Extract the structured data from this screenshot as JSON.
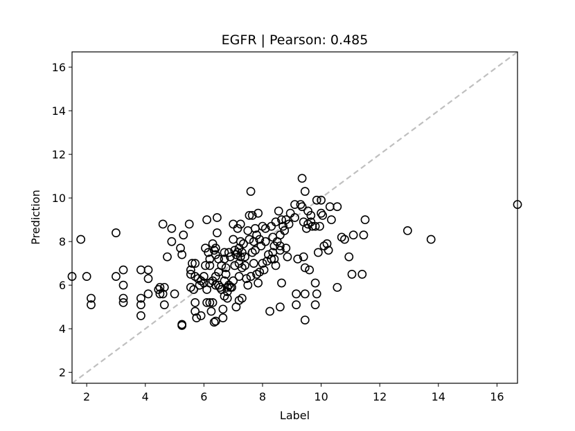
{
  "chart_data": {
    "type": "scatter",
    "title": "EGFR  |  Pearson: 0.485",
    "xlabel": "Label",
    "ylabel": "Prediction",
    "xlim": [
      1.5,
      16.7
    ],
    "ylim": [
      1.5,
      16.7
    ],
    "xticks": [
      2,
      4,
      6,
      8,
      10,
      12,
      14,
      16
    ],
    "yticks": [
      2,
      4,
      6,
      8,
      10,
      12,
      14,
      16
    ],
    "grid": false,
    "legend": "none",
    "reference_line": {
      "type": "identity",
      "style": "dashed",
      "color": "#bfbfbf"
    },
    "marker": {
      "shape": "circle",
      "fill": "none",
      "stroke": "#000000"
    },
    "points": [
      [
        1.5,
        6.4
      ],
      [
        1.8,
        8.1
      ],
      [
        2.0,
        6.4
      ],
      [
        2.15,
        5.4
      ],
      [
        2.15,
        5.1
      ],
      [
        3.0,
        8.4
      ],
      [
        3.0,
        6.4
      ],
      [
        3.25,
        6.7
      ],
      [
        3.25,
        6.0
      ],
      [
        3.25,
        5.4
      ],
      [
        3.25,
        5.2
      ],
      [
        3.85,
        6.7
      ],
      [
        3.85,
        5.4
      ],
      [
        3.85,
        5.1
      ],
      [
        3.85,
        4.6
      ],
      [
        4.1,
        6.7
      ],
      [
        4.1,
        6.3
      ],
      [
        4.1,
        5.6
      ],
      [
        4.45,
        5.8
      ],
      [
        4.5,
        5.9
      ],
      [
        4.5,
        5.6
      ],
      [
        4.6,
        5.6
      ],
      [
        4.6,
        8.8
      ],
      [
        4.65,
        5.9
      ],
      [
        4.65,
        5.1
      ],
      [
        4.75,
        7.3
      ],
      [
        4.9,
        8.6
      ],
      [
        4.9,
        8.0
      ],
      [
        5.0,
        5.6
      ],
      [
        5.2,
        7.7
      ],
      [
        5.25,
        7.4
      ],
      [
        5.25,
        4.2
      ],
      [
        5.25,
        4.15
      ],
      [
        5.3,
        8.3
      ],
      [
        5.5,
        8.8
      ],
      [
        5.55,
        6.7
      ],
      [
        5.55,
        6.5
      ],
      [
        5.55,
        5.9
      ],
      [
        5.6,
        7.0
      ],
      [
        5.65,
        5.8
      ],
      [
        5.7,
        7.0
      ],
      [
        5.7,
        6.4
      ],
      [
        5.7,
        5.2
      ],
      [
        5.7,
        4.8
      ],
      [
        5.75,
        4.5
      ],
      [
        5.8,
        6.3
      ],
      [
        5.85,
        6.0
      ],
      [
        5.9,
        6.2
      ],
      [
        5.9,
        4.6
      ],
      [
        6.0,
        6.4
      ],
      [
        6.0,
        6.1
      ],
      [
        6.05,
        7.7
      ],
      [
        6.05,
        6.9
      ],
      [
        6.1,
        5.2
      ],
      [
        6.1,
        5.8
      ],
      [
        6.1,
        9.0
      ],
      [
        6.15,
        7.5
      ],
      [
        6.2,
        7.2
      ],
      [
        6.2,
        6.9
      ],
      [
        6.2,
        6.1
      ],
      [
        6.2,
        5.2
      ],
      [
        6.25,
        4.8
      ],
      [
        6.3,
        5.2
      ],
      [
        6.3,
        6.2
      ],
      [
        6.3,
        7.9
      ],
      [
        6.35,
        7.6
      ],
      [
        6.35,
        4.3
      ],
      [
        6.4,
        7.4
      ],
      [
        6.4,
        7.7
      ],
      [
        6.4,
        6.4
      ],
      [
        6.4,
        6.0
      ],
      [
        6.4,
        4.35
      ],
      [
        6.45,
        8.4
      ],
      [
        6.45,
        9.1
      ],
      [
        6.5,
        7.2
      ],
      [
        6.5,
        6.6
      ],
      [
        6.5,
        6.0
      ],
      [
        6.55,
        5.9
      ],
      [
        6.6,
        5.8
      ],
      [
        6.6,
        6.9
      ],
      [
        6.65,
        4.5
      ],
      [
        6.65,
        4.9
      ],
      [
        6.7,
        5.5
      ],
      [
        6.7,
        6.2
      ],
      [
        6.7,
        7.5
      ],
      [
        6.7,
        7.2
      ],
      [
        6.75,
        6.8
      ],
      [
        6.75,
        6.5
      ],
      [
        6.8,
        5.9
      ],
      [
        6.8,
        5.7
      ],
      [
        6.8,
        5.4
      ],
      [
        6.85,
        6.0
      ],
      [
        6.85,
        7.5
      ],
      [
        6.9,
        5.9
      ],
      [
        6.9,
        7.3
      ],
      [
        6.95,
        5.9
      ],
      [
        7.0,
        8.1
      ],
      [
        7.0,
        8.8
      ],
      [
        7.0,
        6.2
      ],
      [
        7.05,
        7.6
      ],
      [
        7.05,
        6.9
      ],
      [
        7.1,
        5.0
      ],
      [
        7.1,
        7.4
      ],
      [
        7.15,
        8.6
      ],
      [
        7.15,
        7.5
      ],
      [
        7.2,
        7.7
      ],
      [
        7.2,
        7.0
      ],
      [
        7.2,
        6.4
      ],
      [
        7.2,
        5.3
      ],
      [
        7.25,
        8.8
      ],
      [
        7.25,
        8.0
      ],
      [
        7.25,
        7.3
      ],
      [
        7.3,
        7.5
      ],
      [
        7.3,
        6.8
      ],
      [
        7.3,
        5.4
      ],
      [
        7.35,
        7.9
      ],
      [
        7.4,
        7.3
      ],
      [
        7.4,
        6.9
      ],
      [
        7.45,
        6.3
      ],
      [
        7.5,
        8.5
      ],
      [
        7.5,
        6.0
      ],
      [
        7.55,
        9.2
      ],
      [
        7.55,
        8.1
      ],
      [
        7.6,
        6.4
      ],
      [
        7.6,
        10.3
      ],
      [
        7.65,
        9.2
      ],
      [
        7.65,
        7.5
      ],
      [
        7.7,
        8.0
      ],
      [
        7.7,
        7.0
      ],
      [
        7.75,
        8.6
      ],
      [
        7.75,
        7.6
      ],
      [
        7.8,
        6.5
      ],
      [
        7.8,
        8.3
      ],
      [
        7.85,
        6.1
      ],
      [
        7.85,
        9.3
      ],
      [
        7.9,
        8.1
      ],
      [
        7.9,
        6.6
      ],
      [
        7.95,
        7.8
      ],
      [
        8.0,
        8.7
      ],
      [
        8.0,
        7.0
      ],
      [
        8.05,
        6.7
      ],
      [
        8.1,
        8.6
      ],
      [
        8.1,
        8.0
      ],
      [
        8.15,
        7.1
      ],
      [
        8.2,
        7.4
      ],
      [
        8.25,
        4.8
      ],
      [
        8.3,
        8.7
      ],
      [
        8.3,
        7.2
      ],
      [
        8.35,
        8.2
      ],
      [
        8.35,
        7.5
      ],
      [
        8.4,
        7.8
      ],
      [
        8.4,
        7.2
      ],
      [
        8.45,
        8.9
      ],
      [
        8.45,
        6.9
      ],
      [
        8.5,
        8.0
      ],
      [
        8.55,
        9.4
      ],
      [
        8.6,
        8.3
      ],
      [
        8.6,
        7.8
      ],
      [
        8.6,
        7.6
      ],
      [
        8.6,
        5.0
      ],
      [
        8.65,
        9.0
      ],
      [
        8.65,
        6.1
      ],
      [
        8.7,
        8.7
      ],
      [
        8.75,
        8.5
      ],
      [
        8.8,
        9.0
      ],
      [
        8.8,
        7.7
      ],
      [
        8.85,
        7.3
      ],
      [
        8.9,
        8.8
      ],
      [
        8.95,
        9.3
      ],
      [
        9.1,
        9.1
      ],
      [
        9.1,
        9.7
      ],
      [
        9.15,
        5.6
      ],
      [
        9.15,
        5.1
      ],
      [
        9.2,
        7.2
      ],
      [
        9.3,
        9.7
      ],
      [
        9.35,
        10.9
      ],
      [
        9.35,
        9.6
      ],
      [
        9.4,
        8.9
      ],
      [
        9.4,
        7.3
      ],
      [
        9.45,
        10.3
      ],
      [
        9.45,
        6.8
      ],
      [
        9.45,
        5.6
      ],
      [
        9.45,
        4.4
      ],
      [
        9.5,
        8.6
      ],
      [
        9.55,
        9.4
      ],
      [
        9.55,
        8.8
      ],
      [
        9.6,
        6.7
      ],
      [
        9.65,
        8.9
      ],
      [
        9.65,
        9.2
      ],
      [
        9.7,
        8.7
      ],
      [
        9.8,
        8.7
      ],
      [
        9.8,
        6.1
      ],
      [
        9.8,
        5.1
      ],
      [
        9.85,
        5.6
      ],
      [
        9.85,
        9.9
      ],
      [
        9.9,
        7.5
      ],
      [
        9.95,
        8.7
      ],
      [
        10.0,
        9.3
      ],
      [
        10.0,
        9.9
      ],
      [
        10.05,
        9.2
      ],
      [
        10.1,
        7.8
      ],
      [
        10.2,
        7.9
      ],
      [
        10.25,
        7.6
      ],
      [
        10.3,
        9.6
      ],
      [
        10.35,
        9.0
      ],
      [
        10.55,
        9.6
      ],
      [
        10.55,
        5.9
      ],
      [
        10.7,
        8.2
      ],
      [
        10.8,
        8.1
      ],
      [
        10.95,
        7.3
      ],
      [
        11.05,
        6.5
      ],
      [
        11.1,
        8.3
      ],
      [
        11.4,
        6.5
      ],
      [
        11.45,
        8.3
      ],
      [
        11.5,
        9.0
      ],
      [
        12.95,
        8.5
      ],
      [
        13.75,
        8.1
      ],
      [
        16.7,
        9.7
      ]
    ]
  }
}
